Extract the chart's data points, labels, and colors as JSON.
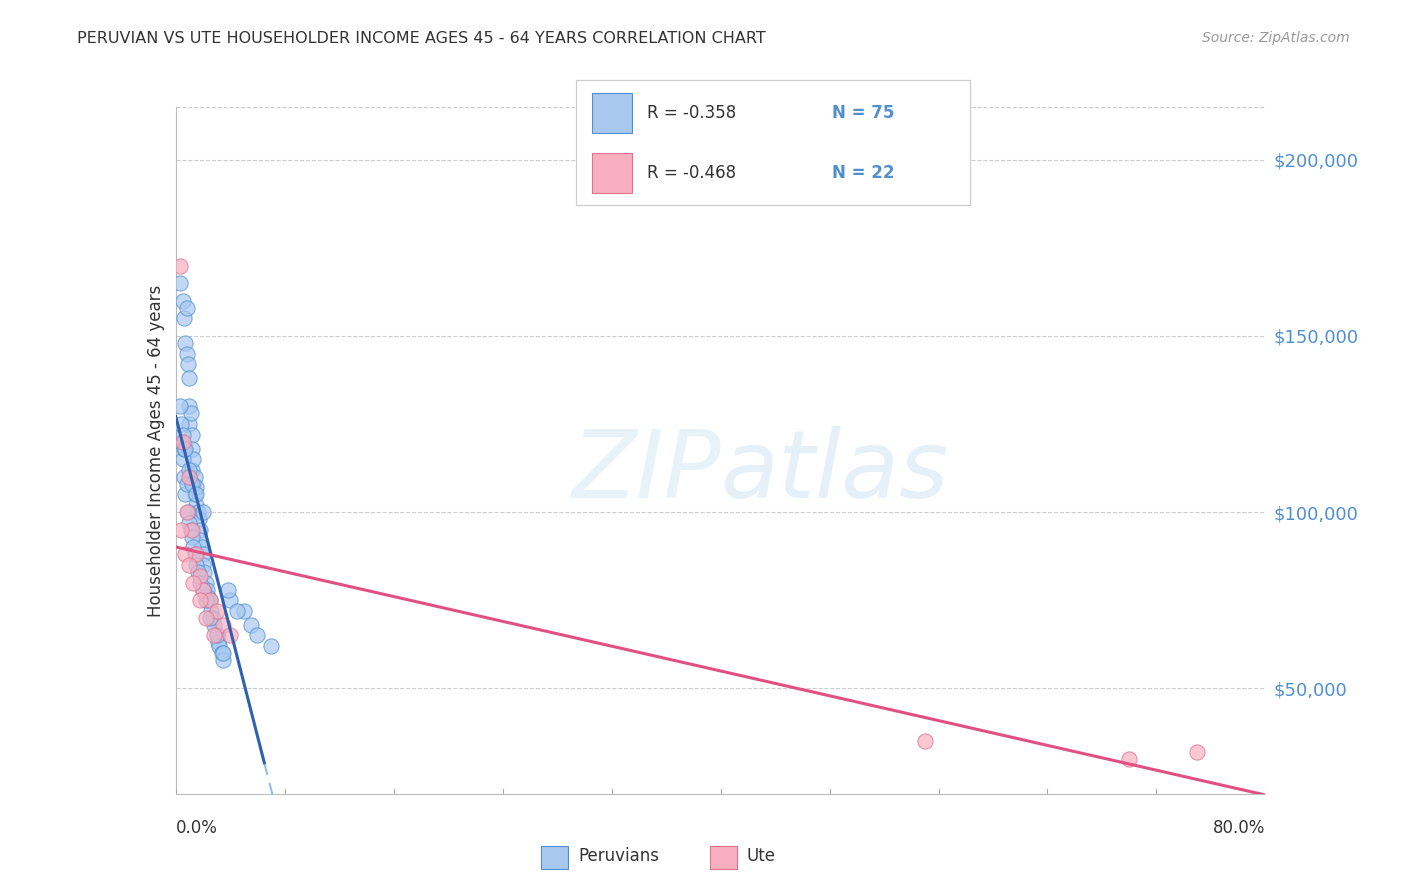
{
  "title": "PERUVIAN VS UTE HOUSEHOLDER INCOME AGES 45 - 64 YEARS CORRELATION CHART",
  "source": "Source: ZipAtlas.com",
  "ylabel": "Householder Income Ages 45 - 64 years",
  "ytick_labels": [
    "$50,000",
    "$100,000",
    "$150,000",
    "$200,000"
  ],
  "ytick_values": [
    50000,
    100000,
    150000,
    200000
  ],
  "xmin": 0.0,
  "xmax": 80.0,
  "ymin": 20000,
  "ymax": 215000,
  "legend_r_blue": "R = -0.358",
  "legend_n_blue": "N = 75",
  "legend_r_pink": "R = -0.468",
  "legend_n_pink": "N = 22",
  "legend_label_blue": "Peruvians",
  "legend_label_pink": "Ute",
  "watermark_zip": "ZIP",
  "watermark_atlas": "atlas",
  "blue_fill": "#A8C8F0",
  "blue_edge": "#5090D0",
  "pink_fill": "#F8B0C0",
  "pink_edge": "#E07090",
  "blue_line_color": "#3060B0",
  "pink_line_color": "#E05080",
  "dashed_line_color": "#90C0E8",
  "tick_color": "#5090D0",
  "grid_color": "#CCCCCC",
  "peruvian_x": [
    0.3,
    0.5,
    0.6,
    0.7,
    0.8,
    0.8,
    0.9,
    1.0,
    1.0,
    1.0,
    1.1,
    1.2,
    1.2,
    1.2,
    1.3,
    1.3,
    1.4,
    1.4,
    1.5,
    1.5,
    1.6,
    1.7,
    1.8,
    1.8,
    1.9,
    2.0,
    2.0,
    2.1,
    2.2,
    2.3,
    2.4,
    2.5,
    2.6,
    2.7,
    2.8,
    3.0,
    3.1,
    3.2,
    3.4,
    3.5,
    0.4,
    0.5,
    0.6,
    0.6,
    0.7,
    0.8,
    0.9,
    1.0,
    1.1,
    1.2,
    1.3,
    1.4,
    1.5,
    1.6,
    1.8,
    2.0,
    2.2,
    2.5,
    3.0,
    3.5,
    0.3,
    0.4,
    0.5,
    0.7,
    1.0,
    1.2,
    1.5,
    2.0,
    5.0,
    5.5,
    6.0,
    7.0,
    4.0,
    4.5,
    3.8
  ],
  "peruvian_y": [
    165000,
    160000,
    155000,
    148000,
    145000,
    158000,
    142000,
    138000,
    130000,
    125000,
    128000,
    122000,
    118000,
    112000,
    115000,
    108000,
    110000,
    105000,
    107000,
    102000,
    100000,
    98000,
    95000,
    92000,
    90000,
    88000,
    85000,
    83000,
    80000,
    78000,
    76000,
    75000,
    72000,
    70000,
    68000,
    65000,
    63000,
    62000,
    60000,
    58000,
    120000,
    115000,
    118000,
    110000,
    105000,
    108000,
    100000,
    97000,
    95000,
    93000,
    90000,
    88000,
    85000,
    83000,
    80000,
    78000,
    75000,
    70000,
    65000,
    60000,
    130000,
    125000,
    122000,
    118000,
    112000,
    108000,
    105000,
    100000,
    72000,
    68000,
    65000,
    62000,
    75000,
    72000,
    78000
  ],
  "ute_x": [
    0.3,
    0.5,
    0.8,
    1.0,
    1.2,
    1.5,
    1.8,
    2.0,
    2.5,
    3.0,
    3.5,
    4.0,
    0.4,
    0.7,
    1.0,
    1.3,
    1.8,
    2.2,
    2.8,
    55.0,
    70.0,
    75.0
  ],
  "ute_y": [
    170000,
    120000,
    100000,
    110000,
    95000,
    88000,
    82000,
    78000,
    75000,
    72000,
    68000,
    65000,
    95000,
    88000,
    85000,
    80000,
    75000,
    70000,
    65000,
    35000,
    30000,
    32000
  ]
}
